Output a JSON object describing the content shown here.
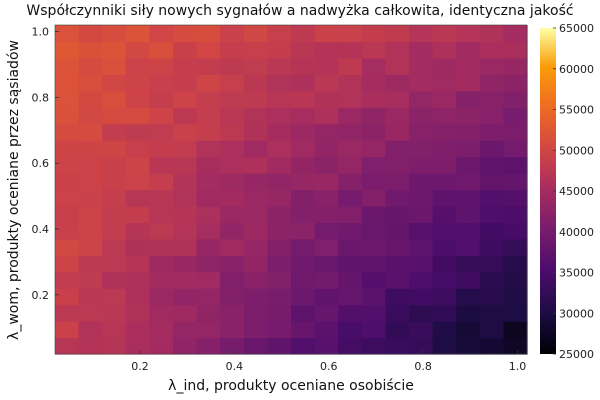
{
  "chart_data": {
    "type": "heatmap",
    "title": "Współczynniki siły nowych sygnałów a nadwyżka całkowita, identyczna jakość",
    "xlabel": "λ_ind, produkty oceniane osobiście",
    "ylabel": "λ_wom, produkty oceniane przez sąsiadów",
    "xlim": [
      0.02,
      1.02
    ],
    "ylim": [
      0.02,
      1.02
    ],
    "x_ticks": [
      "0.2",
      "0.4",
      "0.6",
      "0.8",
      "1.0"
    ],
    "y_ticks": [
      "0.2",
      "0.4",
      "0.6",
      "0.8",
      "1.0"
    ],
    "colorbar": {
      "range": [
        25000,
        65000
      ],
      "ticks": [
        "25000",
        "30000",
        "35000",
        "40000",
        "45000",
        "50000",
        "55000",
        "60000",
        "65000"
      ],
      "colormap": "inferno"
    },
    "grid_size": [
      20,
      20
    ],
    "value_model": {
      "description_of_values": "approximate surplus per cell, highest at low λ_ind / high λ_wom, lowest at high λ_ind / low λ_wom",
      "max_value_approx": 52000,
      "min_value_approx": 27000
    }
  }
}
